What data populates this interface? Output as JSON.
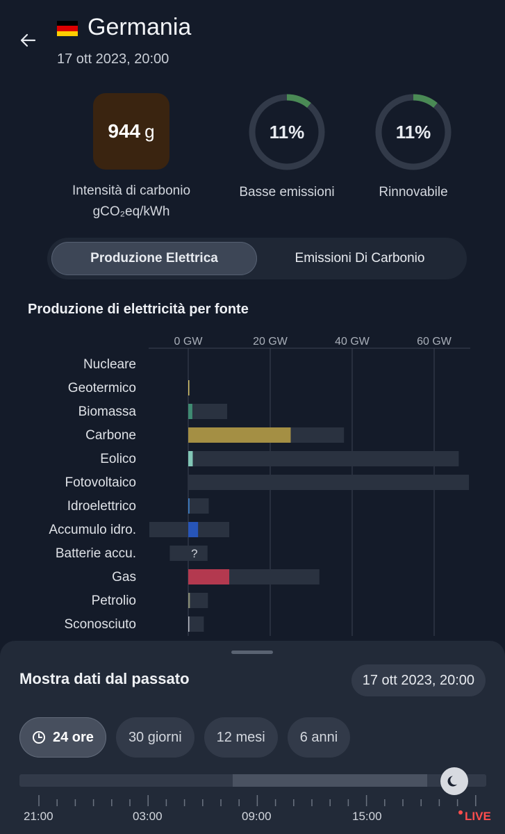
{
  "header": {
    "title": "Germania",
    "datetime": "17 ott 2023, 20:00",
    "flag_colors": [
      "#000000",
      "#dd0000",
      "#ffce00"
    ]
  },
  "stats": {
    "carbon": {
      "value": "944",
      "unit": "g",
      "label_line1": "Intensità di carbonio",
      "label_line2": "gCO₂eq/kWh",
      "color": "#3a2410"
    },
    "low_emissions": {
      "value": "11%",
      "fraction": 0.11,
      "label": "Basse emissioni"
    },
    "renewable": {
      "value": "11%",
      "fraction": 0.11,
      "label": "Rinnovabile"
    },
    "ring_color": "#4a8a55",
    "ring_track": "#323a49"
  },
  "tabs": {
    "production": "Produzione Elettrica",
    "emissions": "Emissioni Di Carbonio",
    "active": "production"
  },
  "chart_title": "Produzione di elettricità per fonte",
  "chart_data": {
    "type": "bar",
    "orientation": "horizontal",
    "xlim": [
      -10,
      70
    ],
    "x_ticks": [
      0,
      20,
      40,
      60
    ],
    "x_tick_labels": [
      "0 GW",
      "20 GW",
      "40 GW",
      "60 GW"
    ],
    "categories": [
      "Nucleare",
      "Geotermico",
      "Biomassa",
      "Carbone",
      "Eolico",
      "Fotovoltaico",
      "Idroelettrico",
      "Accumulo idro.",
      "Batterie accu.",
      "Gas",
      "Petrolio",
      "Sconosciuto"
    ],
    "series": [
      {
        "role": "capacity_range",
        "values": [
          [
            0,
            0
          ],
          [
            0,
            0.1
          ],
          [
            0,
            9.5
          ],
          [
            0,
            38
          ],
          [
            0,
            66
          ],
          [
            0,
            68.5
          ],
          [
            0,
            5
          ],
          [
            -9.5,
            10
          ],
          [
            -4.5,
            4.7
          ],
          [
            0,
            32
          ],
          [
            0,
            4.8
          ],
          [
            0,
            3.8
          ]
        ]
      },
      {
        "role": "production",
        "values": [
          0,
          0.1,
          1.0,
          25,
          1.1,
          0,
          0.3,
          2.4,
          0,
          10,
          0.4,
          0.2
        ]
      }
    ],
    "colors": [
      "#b7b1e0",
      "#d8c46a",
      "#3f8b72",
      "#a48f44",
      "#82c6b6",
      "#e7c64a",
      "#3d7dc4",
      "#2755b8",
      "#6c8cc8",
      "#b3394f",
      "#868b74",
      "#b9bcc4"
    ],
    "annotations": [
      {
        "category": "Batterie accu.",
        "text": "?"
      }
    ],
    "grid": true
  },
  "history": {
    "title": "Mostra dati dal passato",
    "date": "17 ott 2023, 20:00",
    "ranges": [
      "24 ore",
      "30 giorni",
      "12 mesi",
      "6 anni"
    ],
    "active_range": "24 ore",
    "time_labels": [
      "21:00",
      "03:00",
      "09:00",
      "15:00"
    ],
    "live_label": "LIVE"
  }
}
